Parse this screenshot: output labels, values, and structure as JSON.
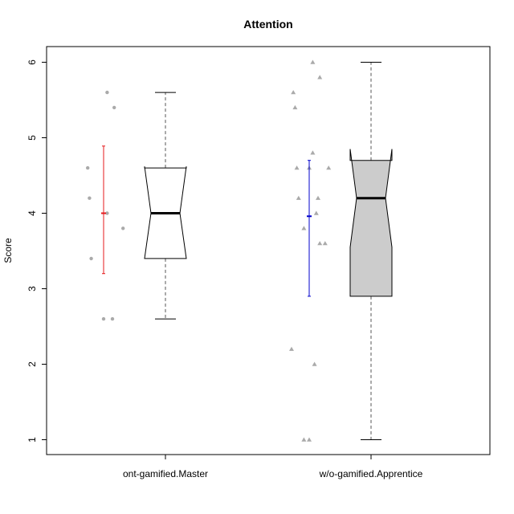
{
  "chart_data": {
    "type": "boxplot",
    "title": "Attention",
    "xlabel": "",
    "ylabel": "Score",
    "ylim": [
      0.8,
      6.2
    ],
    "yticks": [
      "1",
      "2",
      "3",
      "4",
      "5",
      "6"
    ],
    "ytick_values": [
      1,
      2,
      3,
      4,
      5,
      6
    ],
    "grid": false,
    "legend": "none",
    "groups": [
      {
        "label": "ont-gamified.Master",
        "box": {
          "min": 2.6,
          "q1": 3.4,
          "median": 4.0,
          "q3": 4.6,
          "max": 5.6,
          "notch_low": 3.4,
          "notch_high": 4.62
        },
        "box_fill": "#ffffff",
        "point_color": "#aaaaaa",
        "point_shape": "circle",
        "points": [
          5.6,
          5.4,
          4.6,
          4.2,
          4.0,
          3.8,
          3.4,
          2.6,
          2.6
        ],
        "mean_sd": {
          "mean": 4.0,
          "low": 3.2,
          "high": 4.89,
          "color": "#e41a1c"
        }
      },
      {
        "label": "w/o-gamified.Apprentice",
        "box": {
          "min": 1.0,
          "q1": 2.9,
          "median": 4.2,
          "q3": 4.7,
          "max": 6.0,
          "notch_low": 3.55,
          "notch_high": 4.85
        },
        "box_fill": "#cccccc",
        "point_color": "#aaaaaa",
        "point_shape": "triangle",
        "points": [
          6.0,
          5.8,
          5.6,
          5.4,
          4.8,
          4.6,
          4.6,
          4.6,
          4.2,
          4.2,
          4.0,
          3.8,
          3.6,
          3.6,
          2.2,
          2.0,
          1.0,
          1.0
        ],
        "mean_sd": {
          "mean": 3.96,
          "low": 2.9,
          "high": 4.7,
          "color": "#0000cc"
        }
      }
    ]
  }
}
